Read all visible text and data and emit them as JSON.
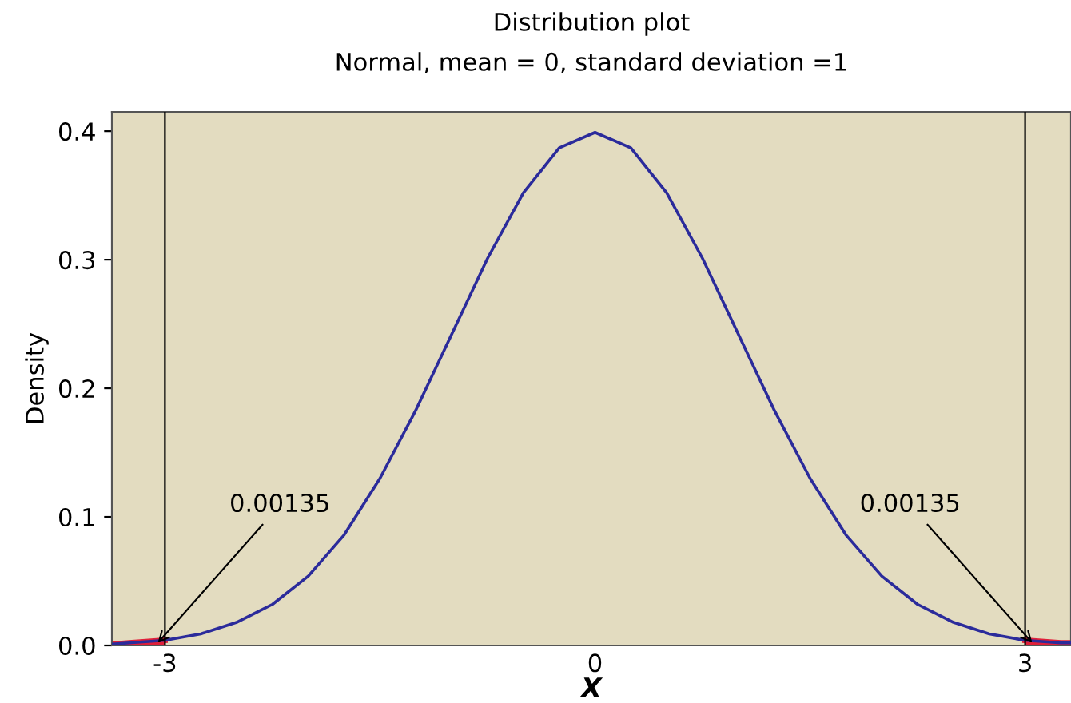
{
  "chart_data": {
    "type": "line",
    "title": "Distribution plot",
    "subtitle": "Normal, mean = 0, standard deviation =1",
    "xlabel": "X",
    "ylabel": "Density",
    "xlim": [
      -3.37,
      3.32
    ],
    "ylim": [
      0,
      0.415
    ],
    "xticks": [
      -3,
      0,
      3
    ],
    "yticks": [
      {
        "value": 0,
        "label": "0.0"
      },
      0.1,
      0.2,
      0.3,
      0.4
    ],
    "grid": false,
    "legend": false,
    "marker": "none",
    "line_style": "solid",
    "series": [
      {
        "type": "area",
        "color": "#e0203a",
        "x": [
          -3.37,
          -3.25,
          -3
        ],
        "values": [
          0.001,
          0.002,
          0.004
        ]
      },
      {
        "type": "area",
        "color": "#e0203a",
        "x": [
          3,
          3.25,
          3.32
        ],
        "values": [
          0.004,
          0.002,
          0.002
        ]
      },
      {
        "color": "#2b2b9b",
        "x": [
          -3.37,
          -3.25,
          -3,
          -2.75,
          -2.5,
          -2.25,
          -2,
          -1.75,
          -1.5,
          -1.25,
          -1,
          -0.75,
          -0.5,
          -0.25,
          0,
          0.25,
          0.5,
          0.75,
          1,
          1.25,
          1.5,
          1.75,
          2,
          2.25,
          2.5,
          2.75,
          3,
          3.25,
          3.32
        ],
        "values": [
          0.001,
          0.002,
          0.004,
          0.009,
          0.018,
          0.032,
          0.054,
          0.086,
          0.13,
          0.183,
          0.242,
          0.301,
          0.352,
          0.387,
          0.399,
          0.387,
          0.352,
          0.301,
          0.242,
          0.183,
          0.13,
          0.086,
          0.054,
          0.032,
          0.018,
          0.009,
          0.004,
          0.002,
          0.002
        ]
      }
    ],
    "ref_lines": [
      {
        "axis": "x",
        "value": -3,
        "color": "#000000"
      },
      {
        "axis": "x",
        "value": 3,
        "color": "#000000"
      }
    ],
    "annotations": [
      {
        "text": "0.00135",
        "x": -3.05,
        "y": 0.002
      },
      {
        "text": "0.00135",
        "x": 3.05,
        "y": 0.002
      }
    ]
  }
}
